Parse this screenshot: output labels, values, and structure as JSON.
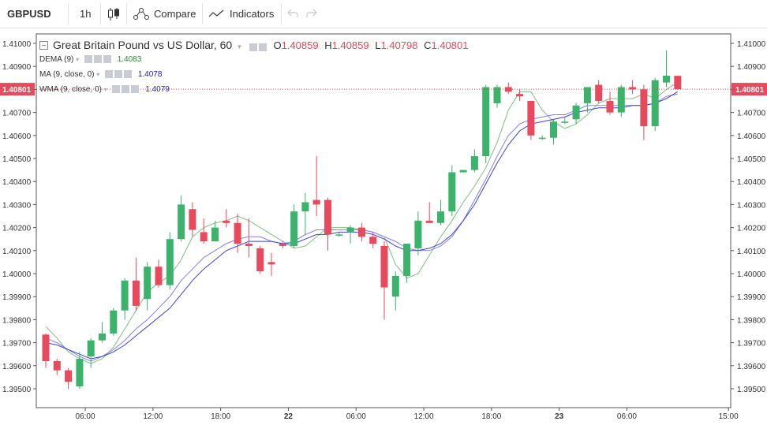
{
  "toolbar": {
    "symbol": "GBPUSD",
    "interval": "1h",
    "compare_label": "Compare",
    "indicators_label": "Indicators"
  },
  "legend": {
    "title": "Great Britain Pound vs US Dollar, 60",
    "o_label": "O",
    "o_value": "1.40859",
    "h_label": "H",
    "h_value": "1.40859",
    "l_label": "L",
    "l_value": "1.40798",
    "c_label": "C",
    "c_value": "1.40801",
    "indicators": [
      {
        "name": "DEMA (9)",
        "value": "1.4083",
        "color": "#2e8b2e"
      },
      {
        "name": "MA (9, close, 0)",
        "value": "1.4078",
        "color": "#1d1db8"
      },
      {
        "name": "WMA (9, close, 0)",
        "value": "1.4079",
        "color": "#1d1db8"
      }
    ]
  },
  "colors": {
    "up": "#26a69a",
    "up_fill": "#3bb36b",
    "down": "#e8495c",
    "dema": "#7fbf7f",
    "ma": "#8080f0",
    "wma": "#4040d0",
    "price_line": "#e8495c"
  },
  "chart_data": {
    "type": "candlestick",
    "symbol": "GBPUSD",
    "timeframe": "60",
    "ylim": [
      1.3945,
      1.4105
    ],
    "y_ticks": [
      "1.41000",
      "1.40900",
      "1.40800",
      "1.40700",
      "1.40600",
      "1.40500",
      "1.40400",
      "1.40300",
      "1.40200",
      "1.40100",
      "1.40000",
      "1.39900",
      "1.39800",
      "1.39700",
      "1.39600",
      "1.39500"
    ],
    "x_ticks": [
      {
        "label": "06:00",
        "i": 3.5
      },
      {
        "label": "12:00",
        "i": 9.5
      },
      {
        "label": "18:00",
        "i": 15.5
      },
      {
        "label": "22",
        "i": 21.5,
        "bold": true
      },
      {
        "label": "06:00",
        "i": 27.5
      },
      {
        "label": "12:00",
        "i": 33.5
      },
      {
        "label": "18:00",
        "i": 39.5
      },
      {
        "label": "23",
        "i": 45.5,
        "bold": true
      },
      {
        "label": "06:00",
        "i": 51.5
      },
      {
        "label": "15:00",
        "i": 60.5
      }
    ],
    "last_price": "1.40801",
    "candles": [
      [
        1.39735,
        1.3974,
        1.3959,
        1.3962
      ],
      [
        1.3962,
        1.3963,
        1.3956,
        1.3958
      ],
      [
        1.3958,
        1.3959,
        1.395,
        1.3953
      ],
      [
        1.3951,
        1.3966,
        1.395,
        1.3963
      ],
      [
        1.3964,
        1.3972,
        1.3959,
        1.3971
      ],
      [
        1.3971,
        1.3979,
        1.397,
        1.3974
      ],
      [
        1.3974,
        1.3985,
        1.3973,
        1.3984
      ],
      [
        1.3984,
        1.3998,
        1.398,
        1.3997
      ],
      [
        1.3997,
        1.4007,
        1.3984,
        1.3986
      ],
      [
        1.3989,
        1.4005,
        1.3984,
        1.4003
      ],
      [
        1.4003,
        1.4006,
        1.3994,
        1.3995
      ],
      [
        1.3995,
        1.4018,
        1.3993,
        1.4015
      ],
      [
        1.4015,
        1.4034,
        1.4014,
        1.403
      ],
      [
        1.4028,
        1.4031,
        1.4016,
        1.4019
      ],
      [
        1.4018,
        1.4024,
        1.4013,
        1.4014
      ],
      [
        1.4014,
        1.4023,
        1.4014,
        1.402
      ],
      [
        1.4023,
        1.4028,
        1.402,
        1.4022
      ],
      [
        1.4022,
        1.4026,
        1.4009,
        1.4013
      ],
      [
        1.4013,
        1.4024,
        1.4007,
        1.4012
      ],
      [
        1.4011,
        1.4012,
        1.4,
        1.4001
      ],
      [
        1.4005,
        1.4009,
        1.3999,
        1.4004
      ],
      [
        1.4013,
        1.4014,
        1.4011,
        1.4012
      ],
      [
        1.4012,
        1.403,
        1.4011,
        1.4027
      ],
      [
        1.4027,
        1.4035,
        1.4017,
        1.4031
      ],
      [
        1.4032,
        1.4051,
        1.4025,
        1.403
      ],
      [
        1.4032,
        1.4033,
        1.401,
        1.4017
      ],
      [
        1.4017,
        1.4018,
        1.4016,
        1.4017
      ],
      [
        1.4018,
        1.4021,
        1.4013,
        1.402
      ],
      [
        1.402,
        1.4022,
        1.4014,
        1.4016
      ],
      [
        1.4016,
        1.4018,
        1.4011,
        1.4013
      ],
      [
        1.4012,
        1.4014,
        1.398,
        1.3994
      ],
      [
        1.399,
        1.4001,
        1.3984,
        1.3999
      ],
      [
        1.3999,
        1.4013,
        1.3996,
        1.4013
      ],
      [
        1.4011,
        1.4027,
        1.4008,
        1.4023
      ],
      [
        1.4023,
        1.4031,
        1.4022,
        1.4022
      ],
      [
        1.4022,
        1.4032,
        1.4021,
        1.4027
      ],
      [
        1.4027,
        1.4047,
        1.4025,
        1.4044
      ],
      [
        1.4044,
        1.4045,
        1.4044,
        1.4045
      ],
      [
        1.4045,
        1.4054,
        1.4044,
        1.4051
      ],
      [
        1.4051,
        1.4082,
        1.4048,
        1.4081
      ],
      [
        1.4074,
        1.4082,
        1.4072,
        1.4081
      ],
      [
        1.4081,
        1.4083,
        1.4078,
        1.4079
      ],
      [
        1.4078,
        1.408,
        1.4075,
        1.4077
      ],
      [
        1.4075,
        1.4075,
        1.4058,
        1.406
      ],
      [
        1.4059,
        1.406,
        1.4058,
        1.4059
      ],
      [
        1.4059,
        1.4067,
        1.4056,
        1.4066
      ],
      [
        1.4066,
        1.4068,
        1.4065,
        1.4066
      ],
      [
        1.4067,
        1.4074,
        1.4065,
        1.4073
      ],
      [
        1.4074,
        1.4081,
        1.407,
        1.4081
      ],
      [
        1.4082,
        1.4084,
        1.4074,
        1.4075
      ],
      [
        1.4075,
        1.4079,
        1.4069,
        1.407
      ],
      [
        1.407,
        1.4082,
        1.4068,
        1.4081
      ],
      [
        1.4081,
        1.4084,
        1.4078,
        1.408
      ],
      [
        1.408,
        1.4082,
        1.4058,
        1.4064
      ],
      [
        1.4064,
        1.4085,
        1.4062,
        1.4084
      ],
      [
        1.4083,
        1.4097,
        1.4081,
        1.4086
      ],
      [
        1.40859,
        1.40859,
        1.40798,
        1.40801
      ]
    ],
    "dema": [
      1.3977,
      1.3972,
      1.3966,
      1.3963,
      1.3961,
      1.3963,
      1.3968,
      1.3976,
      1.3984,
      1.3992,
      1.3996,
      1.3999,
      1.4006,
      1.4016,
      1.402,
      1.4022,
      1.4023,
      1.4025,
      1.4023,
      1.402,
      1.4017,
      1.4014,
      1.4011,
      1.4012,
      1.4016,
      1.402,
      1.402,
      1.402,
      1.4019,
      1.4018,
      1.4016,
      1.4004,
      1.3998,
      1.4,
      1.4008,
      1.4016,
      1.4023,
      1.4031,
      1.4038,
      1.4046,
      1.4057,
      1.4071,
      1.4079,
      1.4079,
      1.4071,
      1.4066,
      1.4063,
      1.4065,
      1.4069,
      1.4074,
      1.4076,
      1.4076,
      1.4076,
      1.4078,
      1.4076,
      1.408,
      1.4083
    ],
    "ma": [
      1.3972,
      1.397,
      1.3967,
      1.3964,
      1.3962,
      1.3964,
      1.3967,
      1.3971,
      1.3976,
      1.398,
      1.3985,
      1.399,
      1.3997,
      1.4002,
      1.4007,
      1.401,
      1.4013,
      1.4015,
      1.4016,
      1.4016,
      1.4014,
      1.4013,
      1.4014,
      1.4017,
      1.4019,
      1.4019,
      1.4019,
      1.4019,
      1.4019,
      1.4018,
      1.4016,
      1.4014,
      1.4011,
      1.401,
      1.401,
      1.4012,
      1.4016,
      1.4023,
      1.4032,
      1.4041,
      1.4051,
      1.406,
      1.4065,
      1.4067,
      1.4068,
      1.4069,
      1.4069,
      1.4071,
      1.4073,
      1.4073,
      1.4073,
      1.4073,
      1.4073,
      1.4073,
      1.4074,
      1.4077,
      1.4078
    ],
    "wma": [
      1.397,
      1.3969,
      1.3967,
      1.3965,
      1.3963,
      1.3964,
      1.3966,
      1.3969,
      1.3973,
      1.3977,
      1.3981,
      1.3985,
      1.3991,
      1.3997,
      1.4002,
      1.4006,
      1.401,
      1.4012,
      1.4014,
      1.4014,
      1.4014,
      1.4013,
      1.4013,
      1.4015,
      1.4017,
      1.4017,
      1.4018,
      1.4018,
      1.4018,
      1.4017,
      1.4015,
      1.4012,
      1.401,
      1.401,
      1.4011,
      1.4013,
      1.4017,
      1.4023,
      1.403,
      1.4039,
      1.4048,
      1.4056,
      1.4062,
      1.4065,
      1.4066,
      1.4067,
      1.4068,
      1.407,
      1.4071,
      1.4072,
      1.4072,
      1.4072,
      1.4073,
      1.4073,
      1.4074,
      1.4076,
      1.4079
    ]
  }
}
